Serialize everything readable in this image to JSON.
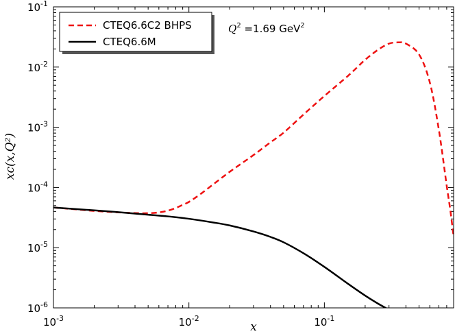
{
  "chart_data": {
    "type": "line",
    "title": "",
    "xlabel": "x",
    "ylabel": "xc(x,Q²)",
    "x_scale": "log",
    "y_scale": "log",
    "xlim": [
      0.001,
      0.9
    ],
    "ylim": [
      1e-06,
      0.1
    ],
    "x_ticks": [
      {
        "value": 0.001,
        "base": "10",
        "exp": "-3"
      },
      {
        "value": 0.01,
        "base": "10",
        "exp": "-2"
      },
      {
        "value": 0.1,
        "base": "10",
        "exp": "-1"
      }
    ],
    "y_ticks": [
      {
        "value": 1e-06,
        "base": "10",
        "exp": "-6"
      },
      {
        "value": 1e-05,
        "base": "10",
        "exp": "-5"
      },
      {
        "value": 0.0001,
        "base": "10",
        "exp": "-4"
      },
      {
        "value": 0.001,
        "base": "10",
        "exp": "-3"
      },
      {
        "value": 0.01,
        "base": "10",
        "exp": "-2"
      },
      {
        "value": 0.1,
        "base": "10",
        "exp": "-1"
      }
    ],
    "annotation": {
      "q": "Q",
      "q_exp": "2",
      "eq": " =1.69 GeV",
      "unit_exp": "2"
    },
    "legend": {
      "position": "top-left"
    },
    "series": [
      {
        "name": "CTEQ6.6C2 BHPS",
        "style": "dashed",
        "color": "#ee1111",
        "x": [
          0.001,
          0.0015,
          0.002,
          0.003,
          0.004,
          0.005,
          0.006,
          0.007,
          0.008,
          0.009,
          0.01,
          0.012,
          0.015,
          0.02,
          0.03,
          0.04,
          0.05,
          0.07,
          0.1,
          0.15,
          0.2,
          0.25,
          0.3,
          0.35,
          0.4,
          0.5,
          0.6,
          0.7,
          0.8,
          0.85,
          0.9
        ],
        "y": [
          4.65e-05,
          4.31e-05,
          4.08e-05,
          3.86e-05,
          3.76e-05,
          3.74e-05,
          3.85e-05,
          4.12e-05,
          4.56e-05,
          5.15e-05,
          5.75e-05,
          7.59e-05,
          0.000111,
          0.000182,
          0.000346,
          0.000562,
          0.000813,
          0.00162,
          0.00331,
          0.0072,
          0.0132,
          0.0195,
          0.0245,
          0.0257,
          0.0245,
          0.0162,
          0.0056,
          0.00091,
          0.000107,
          4.27e-05,
          1.52e-05
        ]
      },
      {
        "name": "CTEQ6.6M",
        "style": "solid",
        "color": "#000000",
        "x": [
          0.001,
          0.002,
          0.003,
          0.005,
          0.007,
          0.01,
          0.015,
          0.02,
          0.03,
          0.04,
          0.05,
          0.07,
          0.1,
          0.15,
          0.2,
          0.25,
          0.3
        ],
        "y": [
          4.65e-05,
          4.17e-05,
          3.89e-05,
          3.53e-05,
          3.31e-05,
          3.02e-05,
          2.63e-05,
          2.34e-05,
          1.86e-05,
          1.51e-05,
          1.23e-05,
          8.1e-06,
          4.8e-06,
          2.5e-06,
          1.6e-06,
          1.17e-06,
          9.3e-07
        ]
      }
    ]
  }
}
